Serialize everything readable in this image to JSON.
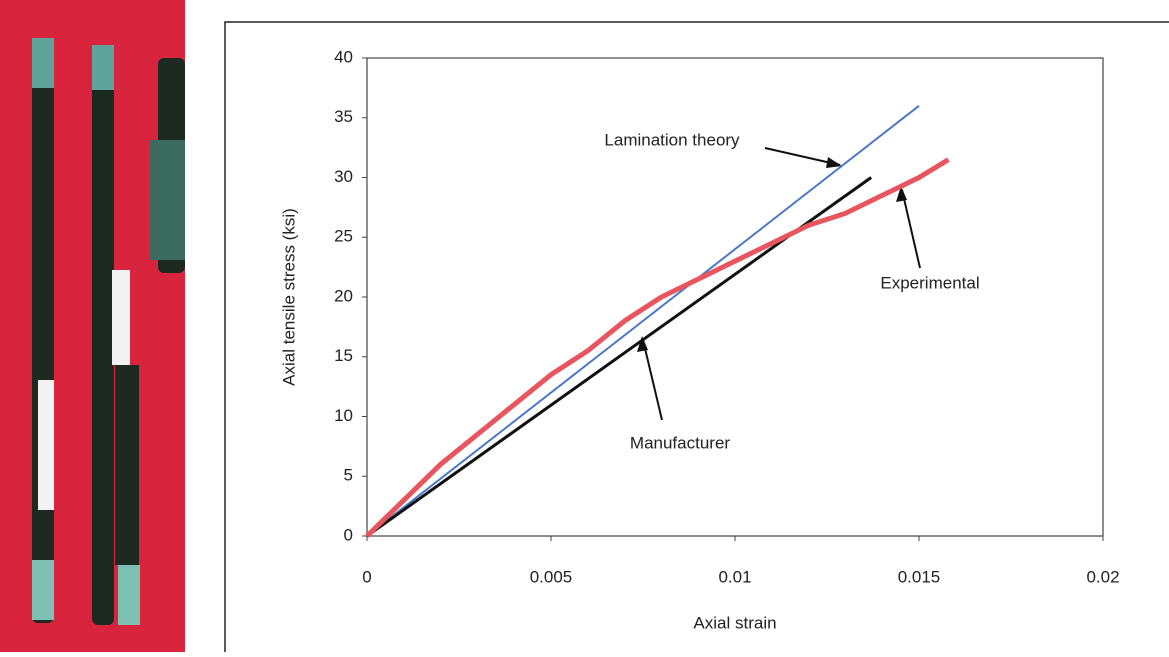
{
  "chart_data": {
    "type": "line",
    "xlabel": "Axial strain",
    "ylabel": "Axial tensile stress (ksi)",
    "xlim": [
      0,
      0.02
    ],
    "xticks": [
      0,
      0.005,
      0.01,
      0.015,
      0.02
    ],
    "ylim": [
      0,
      40
    ],
    "yticks": [
      0,
      5,
      10,
      15,
      20,
      25,
      30,
      35,
      40
    ],
    "series": [
      {
        "name": "Lamination theory",
        "color": "#4a78c8",
        "x": [
          0,
          0.015
        ],
        "values": [
          0,
          36
        ]
      },
      {
        "name": "Manufacturer",
        "color": "#111111",
        "x": [
          0,
          0.0137
        ],
        "values": [
          0,
          30
        ]
      },
      {
        "name": "Experimental",
        "color": "#e8555f",
        "x": [
          0,
          0.001,
          0.002,
          0.003,
          0.004,
          0.005,
          0.006,
          0.007,
          0.008,
          0.009,
          0.01,
          0.011,
          0.012,
          0.013,
          0.014,
          0.015,
          0.0158
        ],
        "values": [
          0,
          3,
          6,
          8.5,
          11,
          13.5,
          15.5,
          18,
          20,
          21.5,
          23,
          24.5,
          26,
          27,
          28.5,
          30,
          31.5
        ]
      }
    ]
  }
}
